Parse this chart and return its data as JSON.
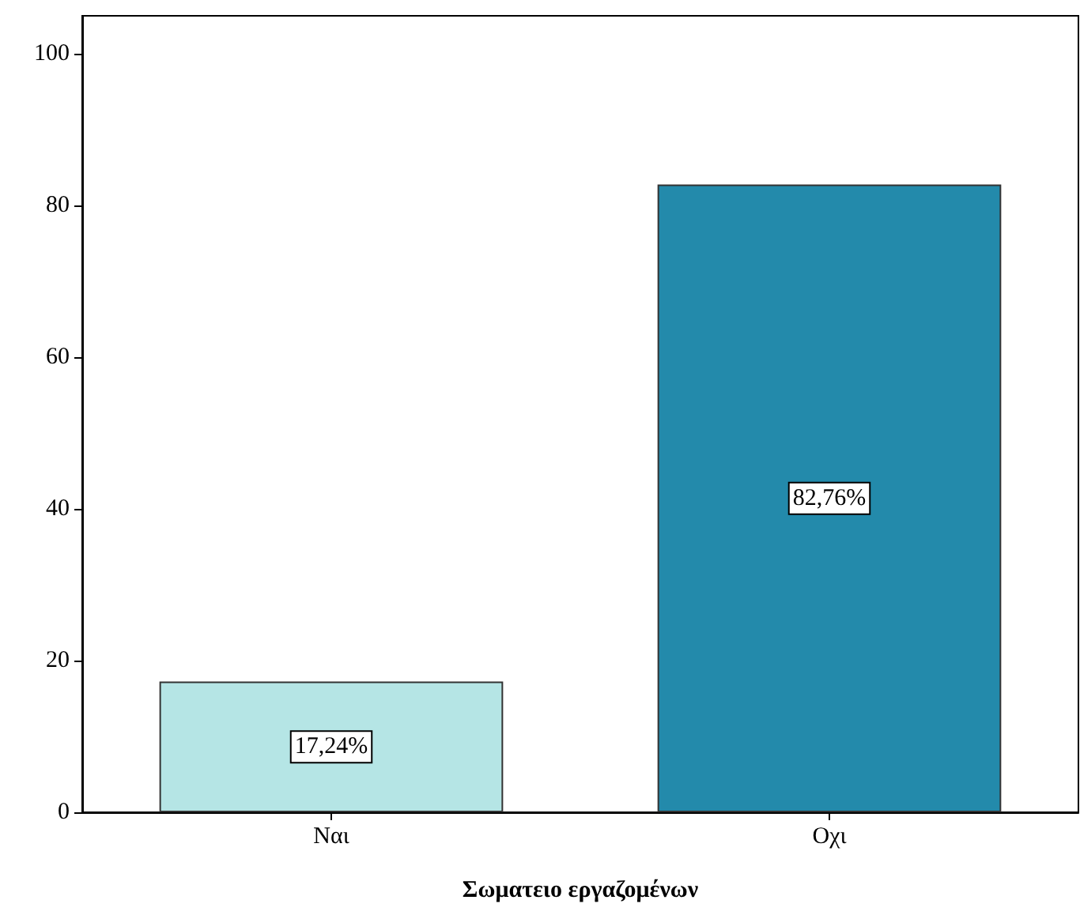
{
  "chart_data": {
    "type": "bar",
    "xlabel": "Σωματειο εργαζομένων",
    "categories": [
      "Ναι",
      "Οχι"
    ],
    "values": [
      17.24,
      82.76
    ],
    "colors": [
      "#b5e5e5",
      "#238aab"
    ],
    "value_labels": [
      "17,24%",
      "82,76%"
    ],
    "ylim": [
      0,
      105
    ],
    "yticks": [
      0,
      20,
      40,
      60,
      80,
      100
    ],
    "grid": false
  }
}
